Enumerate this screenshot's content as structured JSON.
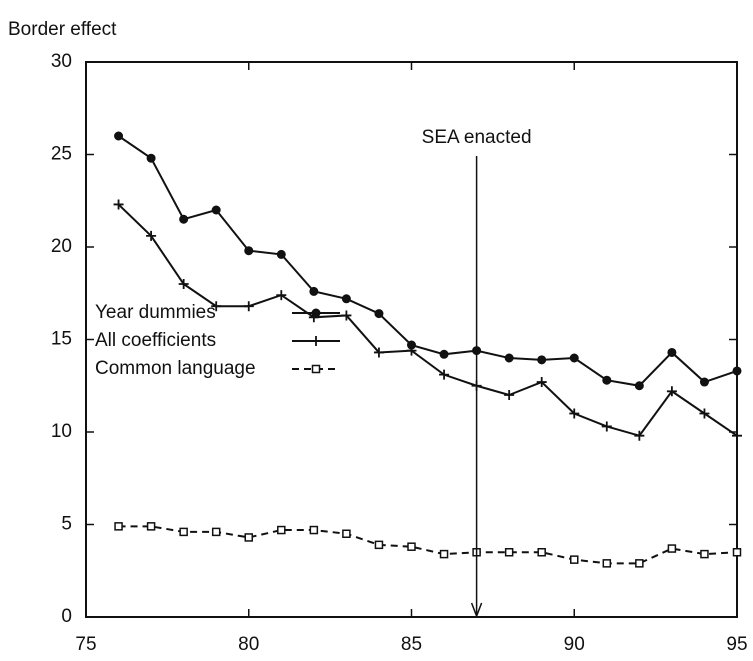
{
  "chart_data": {
    "type": "line",
    "ylabel": "Border effect",
    "x": [
      76,
      77,
      78,
      79,
      80,
      81,
      82,
      83,
      84,
      85,
      86,
      87,
      88,
      89,
      90,
      91,
      92,
      93,
      94,
      95
    ],
    "series": [
      {
        "name": "Year dummies",
        "color": "#111111",
        "marker": "circle",
        "dash": "solid",
        "values": [
          26.0,
          24.8,
          21.5,
          22.0,
          19.8,
          19.6,
          17.6,
          17.2,
          16.4,
          14.7,
          14.2,
          14.4,
          14.0,
          13.9,
          14.0,
          12.8,
          12.5,
          14.3,
          12.7,
          13.3
        ]
      },
      {
        "name": "All coefficients",
        "color": "#111111",
        "marker": "plus",
        "dash": "solid",
        "values": [
          22.3,
          20.6,
          18.0,
          16.8,
          16.8,
          17.4,
          16.2,
          16.3,
          14.3,
          14.4,
          13.1,
          12.5,
          12.0,
          12.7,
          11.0,
          10.3,
          9.8,
          12.2,
          11.0,
          9.8
        ]
      },
      {
        "name": "Common language",
        "color": "#111111",
        "marker": "square",
        "dash": "dashed",
        "values": [
          4.9,
          4.9,
          4.6,
          4.6,
          4.3,
          4.7,
          4.7,
          4.5,
          3.9,
          3.8,
          3.4,
          3.5,
          3.5,
          3.5,
          3.1,
          2.9,
          2.9,
          3.7,
          3.4,
          3.5
        ]
      }
    ],
    "annotation": {
      "text": "SEA enacted",
      "x": 87
    },
    "xlim": [
      75,
      95
    ],
    "xticks": [
      75,
      80,
      85,
      90,
      95
    ],
    "ylim": [
      0,
      30
    ],
    "yticks": [
      0,
      5,
      10,
      15,
      20,
      25,
      30
    ],
    "grid": false,
    "legend": "center left"
  }
}
